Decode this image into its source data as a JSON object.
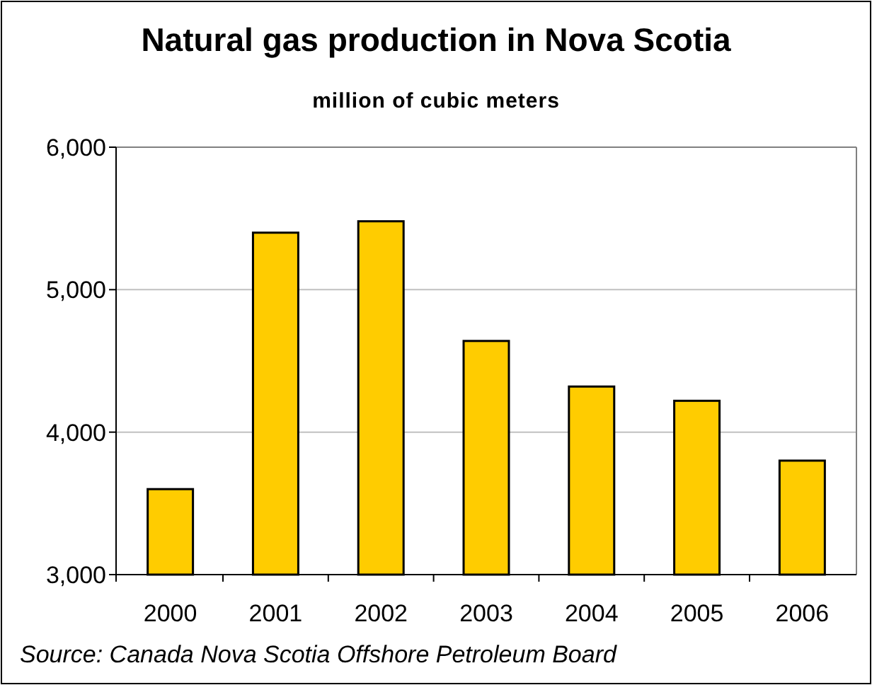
{
  "chart_data": {
    "type": "bar",
    "title": "Natural gas production in Nova Scotia",
    "subtitle": "million of cubic meters",
    "categories": [
      "2000",
      "2001",
      "2002",
      "2003",
      "2004",
      "2005",
      "2006"
    ],
    "values": [
      3600,
      5400,
      5480,
      4640,
      4320,
      4220,
      3800
    ],
    "color": "#ffcc00",
    "ylim": [
      3000,
      6000
    ],
    "yticks": [
      {
        "value": 3000,
        "label": "3,000"
      },
      {
        "value": 4000,
        "label": "4,000"
      },
      {
        "value": 5000,
        "label": "5,000"
      },
      {
        "value": 6000,
        "label": "6,000"
      }
    ],
    "grid": "y",
    "annotations": [
      "Source: Canada Nova Scotia Offshore Petroleum Board"
    ]
  }
}
